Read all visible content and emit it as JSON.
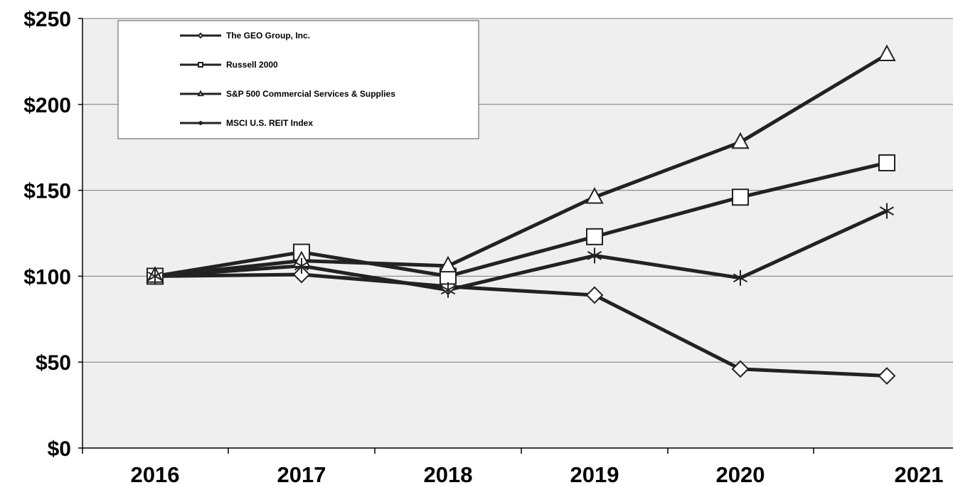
{
  "chart_data": {
    "type": "line",
    "categories": [
      "2016",
      "2017",
      "2018",
      "2019",
      "2020",
      "2021"
    ],
    "ylim": [
      0,
      250
    ],
    "y_ticks": [
      "$0",
      "$50",
      "$100",
      "$150",
      "$200",
      "$250"
    ],
    "y_tick_values": [
      0,
      50,
      100,
      150,
      200,
      250
    ],
    "grid": true,
    "legend_position": "top-left",
    "plot_background": "#efefef",
    "line_color": "#222222",
    "series": [
      {
        "name": "The GEO Group, Inc.",
        "marker": "diamond",
        "values": [
          100,
          101,
          94,
          89,
          46,
          42
        ]
      },
      {
        "name": "Russell 2000",
        "marker": "square",
        "values": [
          100,
          114,
          100,
          123,
          146,
          166
        ]
      },
      {
        "name": "S&P 500 Commercial Services & Supplies",
        "marker": "triangle",
        "values": [
          100,
          109,
          106,
          146,
          178,
          229
        ]
      },
      {
        "name": "MSCI U.S. REIT Index",
        "marker": "star",
        "values": [
          100,
          106,
          92,
          112,
          99,
          138
        ]
      }
    ]
  }
}
